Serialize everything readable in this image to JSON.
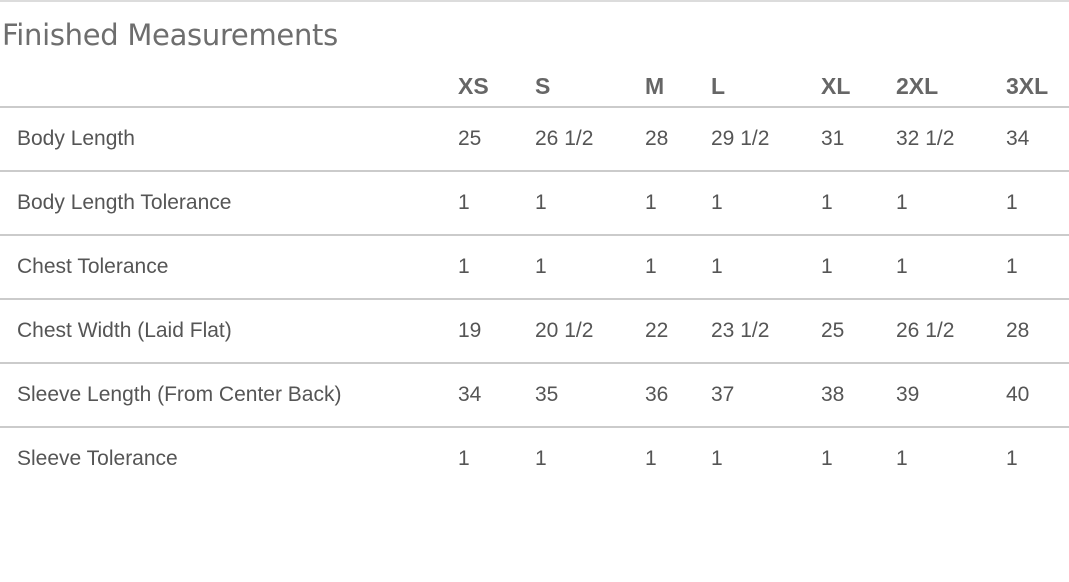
{
  "title": "Finished Measurements",
  "sizes": [
    "XS",
    "S",
    "M",
    "L",
    "XL",
    "2XL",
    "3XL"
  ],
  "rows": [
    {
      "label": "Body Length",
      "values": [
        "25",
        "26 1/2",
        "28",
        "29 1/2",
        "31",
        "32 1/2",
        "34"
      ]
    },
    {
      "label": "Body Length Tolerance",
      "values": [
        "1",
        "1",
        "1",
        "1",
        "1",
        "1",
        "1"
      ]
    },
    {
      "label": "Chest Tolerance",
      "values": [
        "1",
        "1",
        "1",
        "1",
        "1",
        "1",
        "1"
      ]
    },
    {
      "label": "Chest Width (Laid Flat)",
      "values": [
        "19",
        "20 1/2",
        "22",
        "23 1/2",
        "25",
        "26 1/2",
        "28"
      ]
    },
    {
      "label": "Sleeve Length (From Center Back)",
      "values": [
        "34",
        "35",
        "36",
        "37",
        "38",
        "39",
        "40"
      ]
    },
    {
      "label": "Sleeve Tolerance",
      "values": [
        "1",
        "1",
        "1",
        "1",
        "1",
        "1",
        "1"
      ]
    }
  ]
}
